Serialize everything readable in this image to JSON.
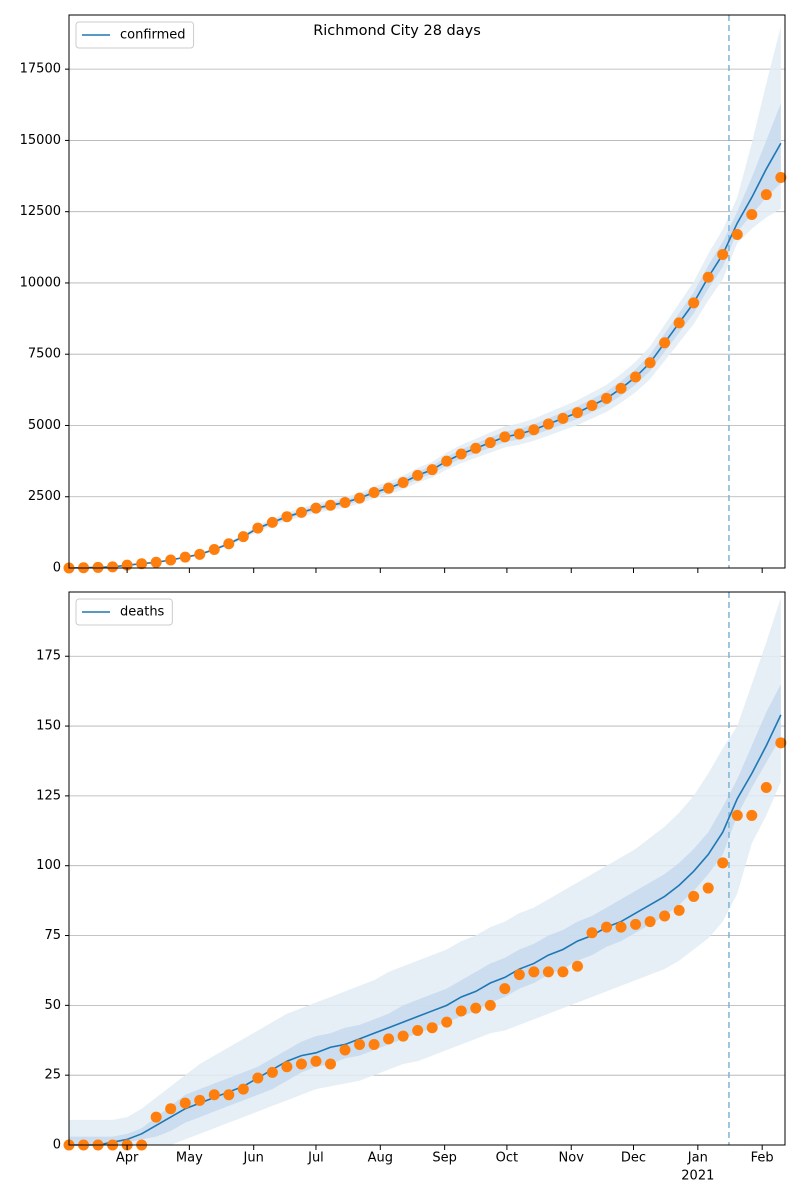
{
  "chart_data": [
    {
      "type": "line",
      "title": "Richmond City 28 days",
      "x": [
        0,
        7,
        14,
        21,
        28,
        35,
        42,
        49,
        56,
        63,
        70,
        77,
        84,
        91,
        98,
        105,
        112,
        119,
        126,
        133,
        140,
        147,
        154,
        161,
        168,
        175,
        182,
        189,
        196,
        203,
        210,
        217,
        224,
        231,
        238,
        245,
        252,
        259,
        266,
        273,
        280,
        287,
        294,
        301,
        308,
        315,
        322,
        329,
        336,
        343
      ],
      "xlim": [
        0,
        345
      ],
      "xticks": [
        28,
        58,
        89,
        119,
        150,
        181,
        211,
        242,
        272,
        303,
        334
      ],
      "show_xtick_labels": false,
      "ylim": [
        0,
        19400
      ],
      "yticks": [
        0,
        2500,
        5000,
        7500,
        10000,
        12500,
        15000,
        17500
      ],
      "grid": true,
      "legend": "upper left",
      "vline": 318,
      "vline_color": "#7fb4d6",
      "bands": [
        {
          "color": "#e2ecf5",
          "lower": [
            0,
            9,
            18,
            37,
            92,
            138,
            184,
            258,
            350,
            442,
            598,
            782,
            1012,
            1288,
            1472,
            1656,
            1794,
            1932,
            2024,
            2116,
            2254,
            2438,
            2576,
            2760,
            2990,
            3174,
            3450,
            3680,
            3864,
            4048,
            4232,
            4324,
            4462,
            4646,
            4830,
            5014,
            5244,
            5474,
            5796,
            6164,
            6624,
            7268,
            7912,
            8556,
            9384,
            10120,
            11400,
            11900,
            12300,
            12600
          ],
          "upper": [
            0,
            11,
            22,
            43,
            108,
            162,
            216,
            302,
            410,
            518,
            702,
            918,
            1188,
            1512,
            1728,
            1944,
            2106,
            2268,
            2376,
            2484,
            2646,
            2862,
            3024,
            3240,
            3510,
            3726,
            4050,
            4320,
            4536,
            4752,
            4968,
            5076,
            5238,
            5454,
            5670,
            5886,
            6156,
            6426,
            6804,
            7236,
            7776,
            8532,
            9288,
            10044,
            11016,
            11880,
            13000,
            14900,
            17000,
            19000
          ]
        },
        {
          "color": "#c5d9ec",
          "lower": [
            0,
            10,
            19,
            38,
            96,
            144,
            192,
            269,
            365,
            461,
            624,
            816,
            1056,
            1344,
            1536,
            1728,
            1872,
            2016,
            2112,
            2208,
            2352,
            2544,
            2688,
            2880,
            3120,
            3312,
            3600,
            3840,
            4032,
            4224,
            4416,
            4512,
            4656,
            4848,
            5040,
            5232,
            5472,
            5712,
            6048,
            6432,
            6912,
            7584,
            8256,
            8928,
            9792,
            10560,
            11800,
            12400,
            13000,
            13500
          ],
          "upper": [
            0,
            10,
            21,
            42,
            104,
            156,
            208,
            291,
            395,
            499,
            676,
            884,
            1144,
            1456,
            1664,
            1872,
            2028,
            2184,
            2288,
            2392,
            2548,
            2756,
            2912,
            3120,
            3380,
            3588,
            3900,
            4160,
            4368,
            4576,
            4784,
            4888,
            5044,
            5252,
            5460,
            5668,
            5928,
            6188,
            6552,
            6968,
            7488,
            8216,
            8944,
            9672,
            10608,
            11440,
            12500,
            13700,
            15000,
            16300
          ]
        }
      ],
      "series": [
        {
          "name": "confirmed",
          "kind": "line",
          "color": "#1f77b4",
          "values": [
            0,
            10,
            20,
            40,
            100,
            150,
            200,
            280,
            380,
            480,
            650,
            850,
            1100,
            1400,
            1600,
            1800,
            1950,
            2100,
            2200,
            2300,
            2450,
            2650,
            2800,
            3000,
            3250,
            3450,
            3750,
            4000,
            4200,
            4400,
            4600,
            4700,
            4850,
            5050,
            5250,
            5450,
            5700,
            5950,
            6300,
            6700,
            7200,
            7900,
            8600,
            9300,
            10200,
            11000,
            12100,
            13000,
            14000,
            14900
          ]
        },
        {
          "kind": "scatter",
          "color": "#ff7f0e",
          "values": [
            0,
            10,
            20,
            40,
            100,
            150,
            200,
            280,
            380,
            480,
            650,
            850,
            1100,
            1400,
            1600,
            1800,
            1950,
            2100,
            2200,
            2300,
            2450,
            2650,
            2800,
            3000,
            3250,
            3450,
            3750,
            4000,
            4200,
            4400,
            4600,
            4700,
            4850,
            5050,
            5250,
            5450,
            5700,
            5950,
            6300,
            6700,
            7200,
            7900,
            8600,
            9300,
            10200,
            11000,
            11700,
            12400,
            13100,
            13700
          ]
        }
      ]
    },
    {
      "type": "line",
      "x": [
        0,
        7,
        14,
        21,
        28,
        35,
        42,
        49,
        56,
        63,
        70,
        77,
        84,
        91,
        98,
        105,
        112,
        119,
        126,
        133,
        140,
        147,
        154,
        161,
        168,
        175,
        182,
        189,
        196,
        203,
        210,
        217,
        224,
        231,
        238,
        245,
        252,
        259,
        266,
        273,
        280,
        287,
        294,
        301,
        308,
        315,
        322,
        329,
        336,
        343
      ],
      "xlim": [
        0,
        345
      ],
      "xticks": [
        {
          "value": 28,
          "label": "Apr"
        },
        {
          "value": 58,
          "label": "May"
        },
        {
          "value": 89,
          "label": "Jun"
        },
        {
          "value": 119,
          "label": "Jul"
        },
        {
          "value": 150,
          "label": "Aug"
        },
        {
          "value": 181,
          "label": "Sep"
        },
        {
          "value": 211,
          "label": "Oct"
        },
        {
          "value": 242,
          "label": "Nov"
        },
        {
          "value": 272,
          "label": "Dec"
        },
        {
          "value": 303,
          "label": "Jan"
        },
        {
          "value": 334,
          "label": "Feb"
        }
      ],
      "show_xtick_labels": true,
      "x_year_label": "2021",
      "ylim": [
        0,
        198
      ],
      "yticks": [
        0,
        25,
        50,
        75,
        100,
        125,
        150,
        175
      ],
      "grid": true,
      "legend": "upper left",
      "vline": 318,
      "vline_color": "#7fb4d6",
      "bands": [
        {
          "color": "#e2ecf5",
          "lower": [
            0,
            0,
            0,
            0,
            0,
            0,
            0,
            0,
            2,
            4,
            6,
            8,
            10,
            12,
            14,
            16,
            18,
            20,
            21,
            22,
            23,
            25,
            27,
            29,
            30,
            32,
            34,
            36,
            38,
            40,
            41,
            43,
            45,
            47,
            49,
            51,
            53,
            55,
            57,
            59,
            61,
            63,
            66,
            70,
            74,
            80,
            90,
            108,
            118,
            130
          ],
          "upper": [
            9,
            9,
            9,
            9,
            10,
            13,
            17,
            21,
            25,
            29,
            32,
            35,
            38,
            41,
            44,
            47,
            49,
            51,
            53,
            55,
            57,
            59,
            62,
            64,
            66,
            68,
            70,
            73,
            75,
            78,
            80,
            83,
            85,
            88,
            91,
            94,
            97,
            100,
            103,
            106,
            110,
            114,
            119,
            125,
            133,
            142,
            150,
            165,
            180,
            196
          ]
        },
        {
          "color": "#c5d9ec",
          "lower": [
            0,
            0,
            0,
            0,
            1,
            2,
            3,
            5,
            8,
            10,
            12,
            14,
            16,
            18,
            20,
            23,
            26,
            28,
            29,
            31,
            32,
            34,
            36,
            38,
            40,
            42,
            44,
            46,
            48,
            51,
            53,
            56,
            58,
            61,
            63,
            66,
            68,
            71,
            73,
            76,
            79,
            82,
            86,
            91,
            97,
            104,
            118,
            128,
            137,
            146
          ],
          "upper": [
            3,
            3,
            3,
            3,
            4,
            6,
            10,
            14,
            18,
            20,
            22,
            24,
            26,
            28,
            31,
            34,
            37,
            39,
            40,
            42,
            43,
            45,
            47,
            50,
            52,
            54,
            56,
            59,
            62,
            65,
            67,
            70,
            72,
            75,
            77,
            80,
            82,
            85,
            88,
            91,
            94,
            97,
            101,
            106,
            112,
            121,
            131,
            143,
            155,
            165
          ]
        }
      ],
      "series": [
        {
          "name": "deaths",
          "kind": "line",
          "color": "#1f77b4",
          "values": [
            0,
            0,
            0,
            1,
            2,
            4,
            7,
            10,
            13,
            15,
            17,
            19,
            21,
            24,
            27,
            30,
            32,
            33,
            35,
            36,
            38,
            40,
            42,
            44,
            46,
            48,
            50,
            53,
            55,
            58,
            60,
            63,
            65,
            68,
            70,
            73,
            75,
            78,
            80,
            83,
            86,
            89,
            93,
            98,
            104,
            112,
            124,
            133,
            143,
            154
          ]
        },
        {
          "kind": "scatter",
          "color": "#ff7f0e",
          "values": [
            0,
            0,
            0,
            0,
            0,
            0,
            10,
            13,
            15,
            16,
            18,
            18,
            20,
            24,
            26,
            28,
            29,
            30,
            29,
            34,
            36,
            36,
            38,
            39,
            41,
            42,
            44,
            48,
            49,
            50,
            56,
            61,
            62,
            62,
            62,
            64,
            76,
            78,
            78,
            79,
            80,
            82,
            84,
            89,
            92,
            101,
            118,
            118,
            128,
            144
          ]
        }
      ]
    }
  ]
}
